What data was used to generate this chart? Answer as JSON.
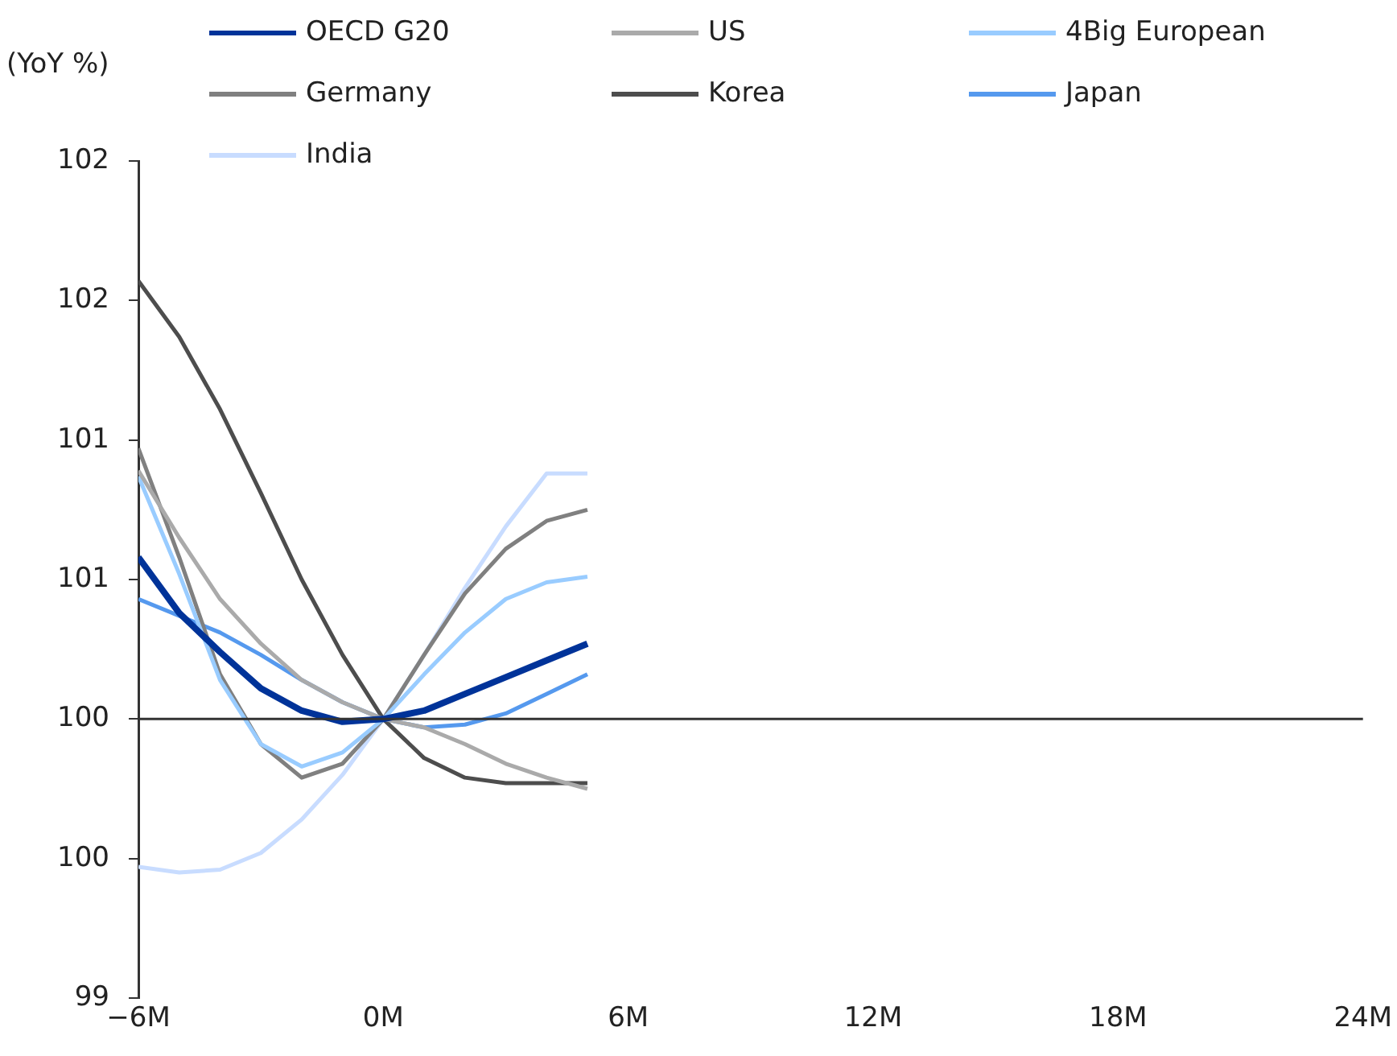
{
  "chart_data": {
    "type": "line",
    "ylabel": "(YoY %)",
    "legend": "top",
    "grid": false,
    "marker": "none",
    "line_style": "solid",
    "x": [
      -6,
      -5,
      -4,
      -3,
      -2,
      -1,
      0,
      1,
      2,
      3,
      4,
      5
    ],
    "xlim": [
      -6,
      24
    ],
    "xticks": [
      {
        "value": -6,
        "label": "−6M"
      },
      {
        "value": 0,
        "label": "0M"
      },
      {
        "value": 6,
        "label": "6M"
      },
      {
        "value": 12,
        "label": "12M"
      },
      {
        "value": 18,
        "label": "18M"
      },
      {
        "value": 24,
        "label": "24M"
      }
    ],
    "ylim": [
      99,
      102
    ],
    "yticks": [
      99,
      {
        "value": 99.5,
        "label": "100"
      },
      100,
      {
        "value": 100.5,
        "label": "101"
      },
      101,
      {
        "value": 101.5,
        "label": "102"
      },
      102
    ],
    "ref_lines": [
      {
        "axis": "y",
        "value": 100,
        "color": "#333333"
      }
    ],
    "series": [
      {
        "name": "OECD G20",
        "color": "#003399",
        "values": [
          100.58,
          100.38,
          100.24,
          100.11,
          100.03,
          99.99,
          100,
          100.03,
          100.09,
          100.15,
          100.21,
          100.27
        ]
      },
      {
        "name": "US",
        "color": "#aaaaaa",
        "values": [
          100.89,
          100.65,
          100.43,
          100.27,
          100.14,
          100.06,
          100,
          99.97,
          99.91,
          99.84,
          99.79,
          99.75
        ]
      },
      {
        "name": "4Big European",
        "color": "#99ccff",
        "values": [
          100.87,
          100.52,
          100.14,
          99.91,
          99.83,
          99.88,
          100,
          100.16,
          100.31,
          100.43,
          100.49,
          100.51
        ]
      },
      {
        "name": "Germany",
        "color": "#808080",
        "values": [
          100.97,
          100.58,
          100.16,
          99.91,
          99.79,
          99.84,
          100,
          100.23,
          100.45,
          100.61,
          100.71,
          100.75
        ]
      },
      {
        "name": "Korea",
        "color": "#4d4d4d",
        "values": [
          101.57,
          101.37,
          101.11,
          100.81,
          100.5,
          100.23,
          100,
          99.86,
          99.79,
          99.77,
          99.77,
          99.77
        ]
      },
      {
        "name": "Japan",
        "color": "#5599ee",
        "values": [
          100.43,
          100.37,
          100.31,
          100.23,
          100.14,
          100.06,
          100,
          99.97,
          99.98,
          100.02,
          100.09,
          100.16
        ]
      },
      {
        "name": "India",
        "color": "#c8dcff",
        "values": [
          99.47,
          99.45,
          99.46,
          99.52,
          99.64,
          99.8,
          100,
          100.23,
          100.47,
          100.69,
          100.88,
          100.88
        ]
      }
    ]
  }
}
